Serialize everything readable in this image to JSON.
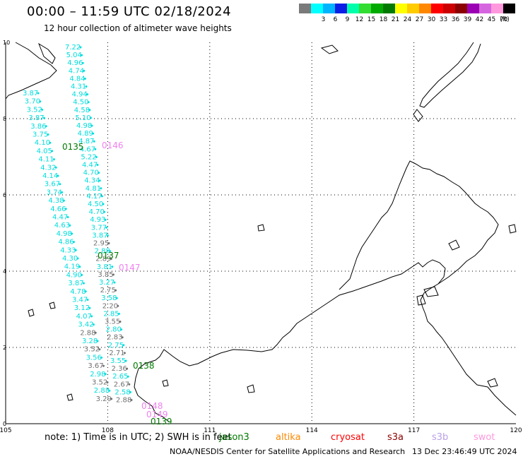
{
  "title": "00:00 – 11:59 UTC 02/18/2024",
  "subtitle": "12 hour collection of altimeter wave heights",
  "color_scale": {
    "unit_label": "(ft)",
    "bins": [
      {
        "label": "",
        "color": "#7a7a7a"
      },
      {
        "label": "3",
        "color": "#00ffff"
      },
      {
        "label": "6",
        "color": "#00b4ff"
      },
      {
        "label": "9",
        "color": "#0a1ee6"
      },
      {
        "label": "12",
        "color": "#00ffaa"
      },
      {
        "label": "15",
        "color": "#33dd33"
      },
      {
        "label": "18",
        "color": "#00aa00"
      },
      {
        "label": "21",
        "color": "#007a00"
      },
      {
        "label": "24",
        "color": "#ffff00"
      },
      {
        "label": "27",
        "color": "#ffcc00"
      },
      {
        "label": "30",
        "color": "#ff8800"
      },
      {
        "label": "33",
        "color": "#ff0000"
      },
      {
        "label": "36",
        "color": "#cc0000"
      },
      {
        "label": "39",
        "color": "#8b0000"
      },
      {
        "label": "42",
        "color": "#9b00b5"
      },
      {
        "label": "45",
        "color": "#d666e0"
      },
      {
        "label": "70",
        "color": "#ff99dd"
      },
      {
        "label": "",
        "color": "#000000"
      }
    ]
  },
  "map": {
    "lon_range": [
      105,
      120
    ],
    "lat_range": [
      0,
      10
    ],
    "x_ticks": [
      "105",
      "108",
      "111",
      "114",
      "117",
      "120"
    ],
    "y_ticks": [
      "0",
      "2",
      "4",
      "6",
      "8",
      "10"
    ],
    "gridlines": "dotted"
  },
  "colors": {
    "cyan": "#00dddd",
    "gray": "#707070",
    "green": "#007a00",
    "pink": "#ee82ee",
    "coast": "#000000"
  },
  "passes": [
    {
      "label": "0135",
      "color": "#007a00"
    },
    {
      "label": "0146",
      "color": "#ee82ee"
    },
    {
      "label": "0137",
      "color": "#007a00"
    },
    {
      "label": "0147",
      "color": "#ee82ee"
    },
    {
      "label": "0138",
      "color": "#007a00"
    },
    {
      "label": "0148",
      "color": "#ee82ee"
    },
    {
      "label": "0149",
      "color": "#ee82ee"
    },
    {
      "label": "0139",
      "color": "#007a00"
    }
  ],
  "track_west": [
    "3.87",
    "3.70",
    "3.52",
    "3.87",
    "3.86",
    "3.75",
    "4.10",
    "4.05",
    "4.11",
    "4.32",
    "4.14",
    "3.67",
    "3.74",
    "4.38",
    "4.66",
    "4.47",
    "4.63",
    "4.98",
    "4.86",
    "4.33",
    "4.30",
    "4.19",
    "4.90",
    "3.87",
    "4.78",
    "3.47",
    "3.12",
    "4.07",
    "3.42",
    "2.88",
    "3.28",
    "3.52",
    "3.56",
    "3.67",
    "2.98",
    "3.52",
    "2.88",
    "3.29"
  ],
  "track_east": [
    "7.22",
    "5.04",
    "4.96",
    "4.74",
    "4.84",
    "4.31",
    "4.94",
    "4.50",
    "4.58",
    "5.10",
    "4.98",
    "4.89",
    "4.87",
    "4.67",
    "5.22",
    "4.47",
    "4.70",
    "4.34",
    "4.81",
    "4.17",
    "4.50",
    "4.70",
    "4.93",
    "3.77",
    "3.87",
    "2.95",
    "2.88",
    "2.89",
    "3.81",
    "3.85",
    "3.27",
    "2.75",
    "3.58",
    "2.20",
    "2.85",
    "3.55",
    "2.80",
    "2.83",
    "2.75",
    "2.71",
    "3.55",
    "2.36",
    "2.65",
    "2.67",
    "2.58",
    "2.88"
  ],
  "note": {
    "text": "note: 1) Time is in UTC; 2) SWH is in feet",
    "satellites": [
      {
        "name": "jason3",
        "color": "#007a00"
      },
      {
        "name": "altika",
        "color": "#ff8800"
      },
      {
        "name": "cryosat",
        "color": "#ff0000"
      },
      {
        "name": "s3a",
        "color": "#8b0000"
      },
      {
        "name": "s3b",
        "color": "#b9a0e6"
      },
      {
        "name": "swot",
        "color": "#ff99dd"
      }
    ]
  },
  "credit": "NOAA/NESDIS Center for Satellite Applications and Research",
  "timestamp": "13 Dec 23:46:49 UTC 2024"
}
